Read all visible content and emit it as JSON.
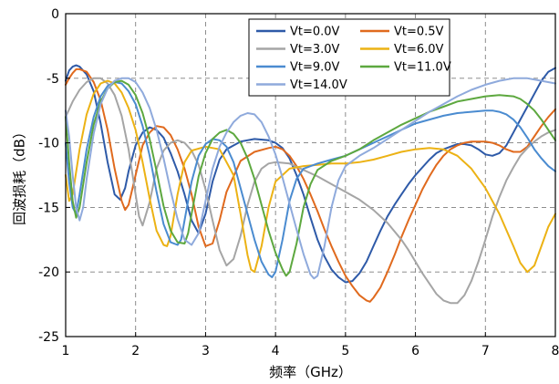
{
  "chart_data": {
    "type": "line",
    "xlabel": "频率（GHz）",
    "ylabel": "回波损耗（dB）",
    "xlim": [
      1,
      8
    ],
    "ylim": [
      -25,
      0
    ],
    "xticks": [
      1,
      2,
      3,
      4,
      5,
      6,
      7,
      8
    ],
    "yticks": [
      0,
      -5,
      -10,
      -15,
      -20,
      -25
    ],
    "grid": true,
    "legend_position": "top-right",
    "series": [
      {
        "name": "Vt=0.0V",
        "color": "#2e5aa8",
        "x": [
          1.0,
          1.05,
          1.1,
          1.15,
          1.2,
          1.3,
          1.4,
          1.5,
          1.6,
          1.7,
          1.78,
          1.85,
          1.9,
          2.0,
          2.1,
          2.2,
          2.3,
          2.4,
          2.5,
          2.6,
          2.7,
          2.8,
          2.9,
          3.0,
          3.1,
          3.2,
          3.3,
          3.5,
          3.7,
          3.9,
          4.0,
          4.1,
          4.2,
          4.3,
          4.4,
          4.5,
          4.6,
          4.7,
          4.8,
          4.9,
          5.0,
          5.1,
          5.2,
          5.3,
          5.4,
          5.5,
          5.6,
          5.7,
          5.8,
          5.9,
          6.0,
          6.1,
          6.2,
          6.3,
          6.4,
          6.5,
          6.6,
          6.7,
          6.8,
          6.9,
          7.0,
          7.1,
          7.2,
          7.3,
          7.4,
          7.5,
          7.6,
          7.7,
          7.8,
          7.9,
          8.0
        ],
        "y": [
          -5.2,
          -4.4,
          -4.1,
          -4.0,
          -4.1,
          -4.7,
          -6.0,
          -8.5,
          -11.5,
          -14.0,
          -14.4,
          -13.5,
          -12.2,
          -10.2,
          -9.2,
          -8.8,
          -9.0,
          -9.6,
          -10.8,
          -12.2,
          -14.0,
          -16.0,
          -17.0,
          -15.5,
          -13.0,
          -11.3,
          -10.5,
          -9.9,
          -9.7,
          -9.8,
          -10.0,
          -10.4,
          -11.2,
          -12.5,
          -14.0,
          -15.8,
          -17.5,
          -18.8,
          -19.8,
          -20.4,
          -20.8,
          -20.7,
          -20.1,
          -19.2,
          -18.0,
          -16.8,
          -15.7,
          -14.8,
          -14.0,
          -13.2,
          -12.5,
          -11.9,
          -11.3,
          -10.8,
          -10.5,
          -10.3,
          -10.1,
          -10.1,
          -10.2,
          -10.5,
          -10.9,
          -11.0,
          -10.8,
          -10.2,
          -9.2,
          -8.2,
          -7.2,
          -6.2,
          -5.2,
          -4.5,
          -4.2
        ]
      },
      {
        "name": "Vt=0.5V",
        "color": "#e06a1e",
        "x": [
          1.0,
          1.05,
          1.1,
          1.15,
          1.2,
          1.3,
          1.4,
          1.5,
          1.6,
          1.7,
          1.8,
          1.85,
          1.9,
          2.0,
          2.1,
          2.2,
          2.3,
          2.4,
          2.5,
          2.6,
          2.7,
          2.8,
          2.9,
          3.0,
          3.1,
          3.2,
          3.3,
          3.5,
          3.7,
          3.9,
          4.0,
          4.1,
          4.2,
          4.3,
          4.4,
          4.5,
          4.6,
          4.7,
          4.8,
          4.9,
          5.0,
          5.1,
          5.2,
          5.3,
          5.35,
          5.4,
          5.5,
          5.6,
          5.7,
          5.8,
          5.9,
          6.0,
          6.1,
          6.2,
          6.3,
          6.4,
          6.5,
          6.6,
          6.7,
          6.8,
          6.9,
          7.0,
          7.1,
          7.2,
          7.3,
          7.4,
          7.5,
          7.6,
          7.7,
          7.8,
          7.9,
          8.0
        ],
        "y": [
          -5.5,
          -5.0,
          -4.6,
          -4.3,
          -4.3,
          -4.5,
          -5.3,
          -6.7,
          -9.0,
          -12.0,
          -14.5,
          -15.2,
          -14.8,
          -12.5,
          -10.2,
          -9.2,
          -8.7,
          -8.8,
          -9.4,
          -10.5,
          -12.0,
          -14.0,
          -16.5,
          -18.0,
          -17.8,
          -16.0,
          -13.8,
          -11.4,
          -10.7,
          -10.4,
          -10.3,
          -10.5,
          -11.0,
          -11.8,
          -12.8,
          -14.0,
          -15.3,
          -16.7,
          -18.0,
          -19.2,
          -20.3,
          -21.1,
          -21.8,
          -22.2,
          -22.3,
          -22.0,
          -21.2,
          -20.0,
          -18.7,
          -17.3,
          -16.0,
          -14.8,
          -13.6,
          -12.6,
          -11.7,
          -11.0,
          -10.5,
          -10.2,
          -10.0,
          -9.9,
          -9.9,
          -9.9,
          -10.0,
          -10.2,
          -10.5,
          -10.7,
          -10.7,
          -10.3,
          -9.5,
          -8.7,
          -8.0,
          -7.4
        ]
      },
      {
        "name": "Vt=3.0V",
        "color": "#a5a5a5",
        "x": [
          1.0,
          1.1,
          1.2,
          1.3,
          1.4,
          1.5,
          1.6,
          1.7,
          1.8,
          1.9,
          2.0,
          2.05,
          2.1,
          2.2,
          2.3,
          2.4,
          2.5,
          2.6,
          2.7,
          2.8,
          2.9,
          3.0,
          3.1,
          3.2,
          3.3,
          3.4,
          3.5,
          3.6,
          3.7,
          3.8,
          3.9,
          4.0,
          4.2,
          4.4,
          4.6,
          4.8,
          5.0,
          5.2,
          5.4,
          5.6,
          5.8,
          5.9,
          6.0,
          6.1,
          6.2,
          6.3,
          6.4,
          6.5,
          6.6,
          6.7,
          6.8,
          6.9,
          7.0,
          7.1,
          7.2,
          7.3,
          7.4,
          7.5,
          7.6,
          7.7,
          7.8,
          7.9,
          8.0
        ],
        "y": [
          -8.0,
          -6.8,
          -5.9,
          -5.3,
          -5.0,
          -5.0,
          -5.4,
          -6.3,
          -7.9,
          -10.5,
          -14.0,
          -15.7,
          -16.4,
          -14.6,
          -12.0,
          -10.6,
          -10.0,
          -9.8,
          -10.0,
          -10.6,
          -11.7,
          -13.6,
          -16.0,
          -18.3,
          -19.5,
          -19.0,
          -17.2,
          -14.8,
          -13.0,
          -12.0,
          -11.6,
          -11.5,
          -11.6,
          -12.1,
          -12.6,
          -13.2,
          -13.8,
          -14.4,
          -15.2,
          -16.2,
          -17.5,
          -18.3,
          -19.2,
          -20.1,
          -20.9,
          -21.7,
          -22.2,
          -22.4,
          -22.4,
          -21.8,
          -20.7,
          -19.2,
          -17.5,
          -15.7,
          -14.2,
          -12.9,
          -11.9,
          -11.0,
          -10.4,
          -9.9,
          -9.5,
          -9.2,
          -9.0
        ]
      },
      {
        "name": "Vt=6.0V",
        "color": "#ecb214",
        "x": [
          1.0,
          1.05,
          1.1,
          1.2,
          1.3,
          1.4,
          1.5,
          1.6,
          1.7,
          1.8,
          1.9,
          2.0,
          2.1,
          2.2,
          2.3,
          2.4,
          2.45,
          2.5,
          2.6,
          2.7,
          2.8,
          3.0,
          3.2,
          3.4,
          3.5,
          3.6,
          3.65,
          3.7,
          3.8,
          3.9,
          4.0,
          4.2,
          4.4,
          4.6,
          4.8,
          5.0,
          5.2,
          5.4,
          5.6,
          5.8,
          6.0,
          6.2,
          6.4,
          6.6,
          6.8,
          7.0,
          7.2,
          7.4,
          7.5,
          7.6,
          7.7,
          7.8,
          7.9,
          8.0
        ],
        "y": [
          -12.5,
          -14.5,
          -14.0,
          -10.5,
          -7.8,
          -6.2,
          -5.4,
          -5.2,
          -5.4,
          -6.1,
          -7.3,
          -9.0,
          -11.5,
          -14.3,
          -16.8,
          -17.9,
          -18.0,
          -17.2,
          -14.0,
          -11.5,
          -10.6,
          -10.3,
          -10.5,
          -12.5,
          -15.5,
          -18.7,
          -19.8,
          -20.0,
          -18.0,
          -15.0,
          -13.0,
          -12.0,
          -11.8,
          -11.7,
          -11.6,
          -11.6,
          -11.5,
          -11.3,
          -11.0,
          -10.7,
          -10.5,
          -10.4,
          -10.5,
          -11.0,
          -12.0,
          -13.5,
          -15.5,
          -18.0,
          -19.3,
          -20.0,
          -19.5,
          -18.0,
          -16.5,
          -15.5
        ]
      },
      {
        "name": "Vt=9.0V",
        "color": "#4a8bd0",
        "x": [
          1.0,
          1.05,
          1.1,
          1.15,
          1.2,
          1.3,
          1.4,
          1.5,
          1.6,
          1.7,
          1.8,
          1.9,
          2.0,
          2.1,
          2.2,
          2.3,
          2.4,
          2.5,
          2.6,
          2.65,
          2.7,
          2.8,
          2.9,
          3.0,
          3.1,
          3.2,
          3.3,
          3.4,
          3.5,
          3.6,
          3.7,
          3.8,
          3.9,
          3.95,
          4.0,
          4.1,
          4.2,
          4.3,
          4.4,
          4.6,
          4.8,
          5.0,
          5.2,
          5.4,
          5.6,
          5.8,
          6.0,
          6.2,
          6.4,
          6.6,
          6.8,
          7.0,
          7.1,
          7.2,
          7.3,
          7.4,
          7.5,
          7.6,
          7.7,
          7.8,
          7.9,
          8.0
        ],
        "y": [
          -10.0,
          -13.0,
          -15.0,
          -15.5,
          -14.0,
          -10.5,
          -8.0,
          -6.4,
          -5.6,
          -5.3,
          -5.4,
          -6.0,
          -7.0,
          -8.7,
          -11.0,
          -13.8,
          -16.3,
          -17.7,
          -17.9,
          -17.5,
          -16.0,
          -13.0,
          -11.0,
          -10.1,
          -9.7,
          -9.8,
          -10.3,
          -11.5,
          -13.5,
          -15.5,
          -17.5,
          -19.2,
          -20.2,
          -20.4,
          -20.0,
          -17.5,
          -14.5,
          -12.8,
          -12.0,
          -11.6,
          -11.3,
          -11.0,
          -10.5,
          -10.0,
          -9.5,
          -9.0,
          -8.5,
          -8.2,
          -7.9,
          -7.7,
          -7.6,
          -7.5,
          -7.5,
          -7.6,
          -7.8,
          -8.2,
          -8.8,
          -9.6,
          -10.5,
          -11.2,
          -11.8,
          -12.2
        ]
      },
      {
        "name": "Vt=11.0V",
        "color": "#5da83f",
        "x": [
          1.0,
          1.05,
          1.1,
          1.15,
          1.2,
          1.3,
          1.4,
          1.5,
          1.6,
          1.7,
          1.8,
          1.9,
          2.0,
          2.1,
          2.2,
          2.3,
          2.4,
          2.5,
          2.6,
          2.7,
          2.75,
          2.8,
          2.9,
          3.0,
          3.1,
          3.2,
          3.3,
          3.4,
          3.5,
          3.6,
          3.7,
          3.8,
          3.9,
          4.0,
          4.1,
          4.15,
          4.2,
          4.3,
          4.4,
          4.5,
          4.6,
          4.8,
          5.0,
          5.2,
          5.4,
          5.6,
          5.8,
          6.0,
          6.2,
          6.4,
          6.6,
          6.8,
          7.0,
          7.2,
          7.4,
          7.5,
          7.6,
          7.7,
          7.8,
          7.9,
          8.0
        ],
        "y": [
          -8.0,
          -11.5,
          -14.5,
          -15.8,
          -15.0,
          -11.5,
          -8.6,
          -6.8,
          -5.8,
          -5.3,
          -5.2,
          -5.5,
          -6.3,
          -7.7,
          -9.7,
          -12.2,
          -14.9,
          -16.8,
          -17.7,
          -17.8,
          -17.0,
          -15.5,
          -12.6,
          -10.8,
          -9.7,
          -9.2,
          -9.0,
          -9.3,
          -10.0,
          -11.2,
          -12.8,
          -14.8,
          -16.8,
          -18.5,
          -19.8,
          -20.3,
          -20.0,
          -17.8,
          -15.0,
          -13.2,
          -12.1,
          -11.4,
          -11.0,
          -10.5,
          -9.8,
          -9.2,
          -8.6,
          -8.1,
          -7.6,
          -7.2,
          -6.8,
          -6.6,
          -6.4,
          -6.3,
          -6.4,
          -6.6,
          -7.0,
          -7.5,
          -8.2,
          -9.0,
          -9.8
        ]
      },
      {
        "name": "Vt=14.0V",
        "color": "#8faadc",
        "x": [
          1.0,
          1.05,
          1.1,
          1.15,
          1.2,
          1.25,
          1.3,
          1.4,
          1.5,
          1.6,
          1.7,
          1.8,
          1.9,
          2.0,
          2.1,
          2.2,
          2.3,
          2.4,
          2.5,
          2.6,
          2.7,
          2.8,
          2.9,
          3.0,
          3.1,
          3.2,
          3.3,
          3.4,
          3.5,
          3.6,
          3.7,
          3.8,
          3.9,
          4.0,
          4.1,
          4.2,
          4.3,
          4.4,
          4.5,
          4.55,
          4.6,
          4.7,
          4.8,
          4.9,
          5.0,
          5.2,
          5.4,
          5.6,
          5.8,
          6.0,
          6.2,
          6.4,
          6.6,
          6.8,
          7.0,
          7.2,
          7.4,
          7.6,
          7.8,
          8.0
        ],
        "y": [
          -7.5,
          -9.5,
          -12.5,
          -15.0,
          -16.0,
          -15.0,
          -12.8,
          -9.3,
          -7.0,
          -5.8,
          -5.2,
          -5.0,
          -5.0,
          -5.3,
          -6.1,
          -7.3,
          -9.0,
          -11.2,
          -13.7,
          -15.9,
          -17.5,
          -17.9,
          -17.0,
          -14.5,
          -12.0,
          -10.3,
          -9.2,
          -8.4,
          -7.9,
          -7.7,
          -7.8,
          -8.4,
          -9.5,
          -10.9,
          -12.7,
          -14.7,
          -16.7,
          -18.6,
          -20.2,
          -20.5,
          -20.3,
          -18.0,
          -15.0,
          -12.9,
          -11.8,
          -11.0,
          -10.4,
          -9.7,
          -9.0,
          -8.3,
          -7.6,
          -7.0,
          -6.4,
          -5.9,
          -5.5,
          -5.2,
          -5.0,
          -5.0,
          -5.2,
          -5.4
        ]
      }
    ]
  }
}
